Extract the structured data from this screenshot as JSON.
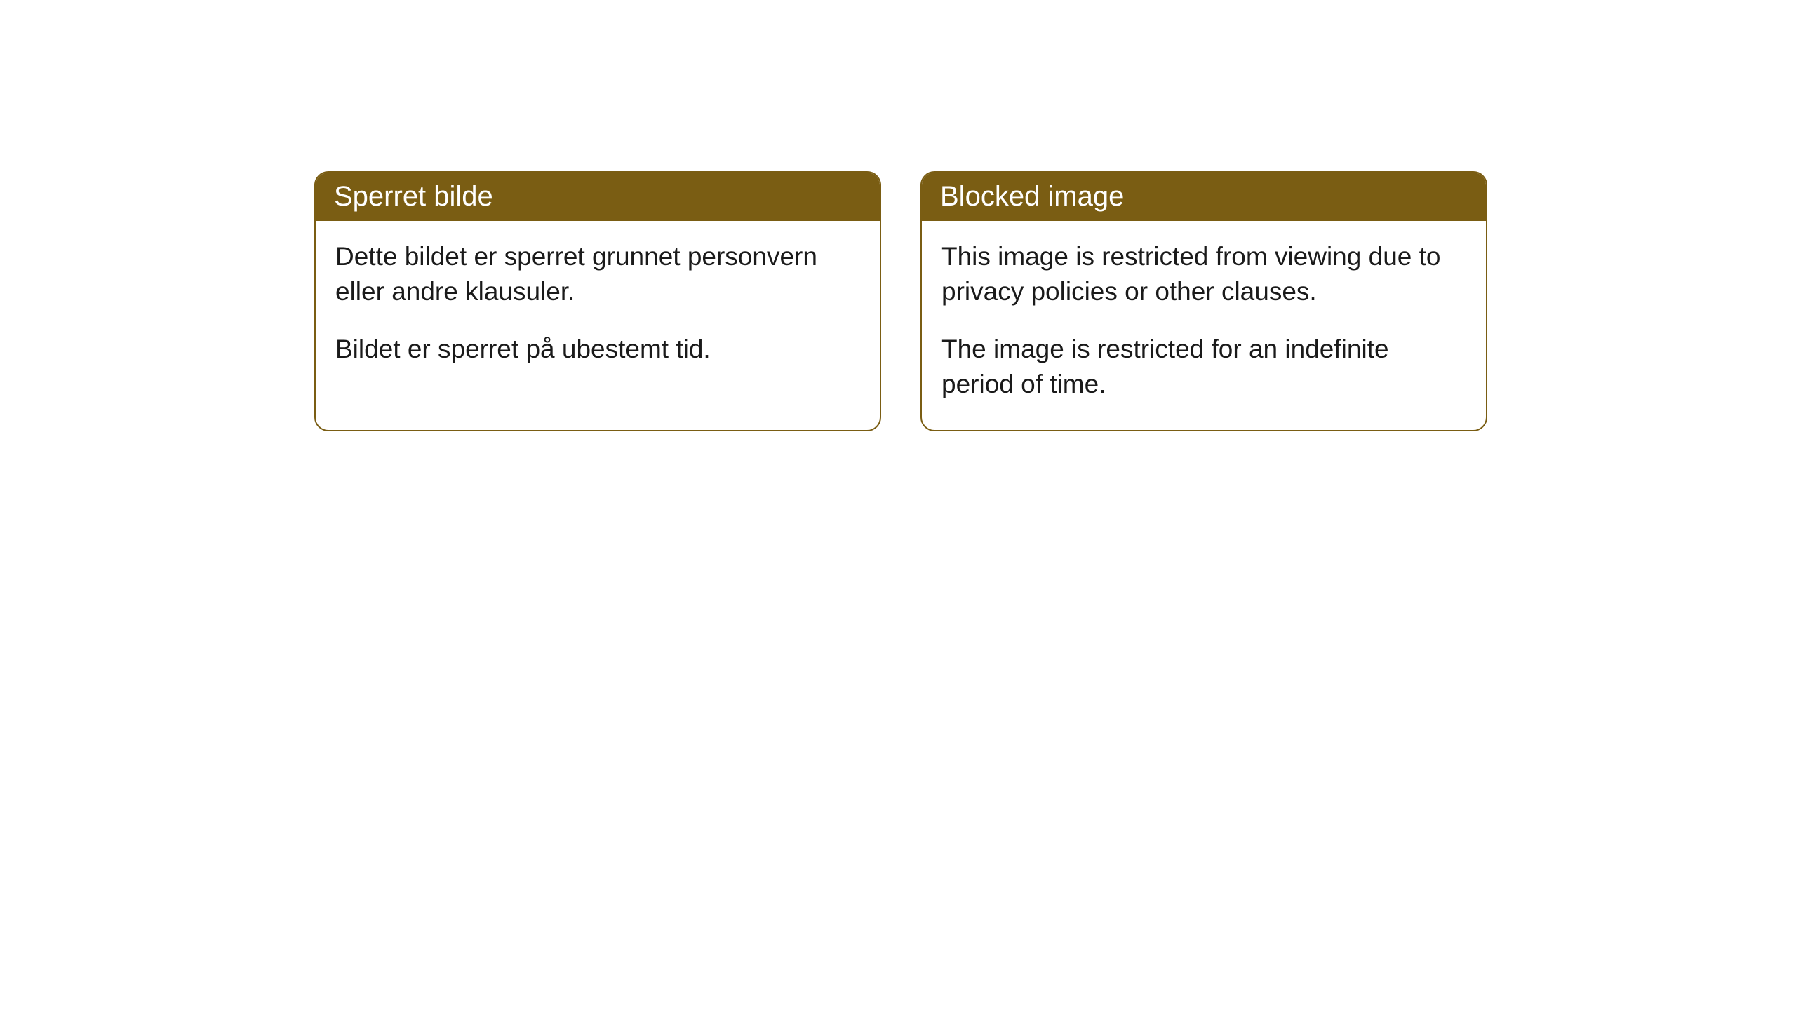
{
  "cards": [
    {
      "title": "Sperret bilde",
      "paragraph1": "Dette bildet er sperret grunnet personvern eller andre klausuler.",
      "paragraph2": "Bildet er sperret på ubestemt tid."
    },
    {
      "title": "Blocked image",
      "paragraph1": "This image is restricted from viewing due to privacy policies or other clauses.",
      "paragraph2": "The image is restricted for an indefinite period of time."
    }
  ],
  "styling": {
    "header_background": "#7a5d13",
    "header_text_color": "#ffffff",
    "border_color": "#7a5d13",
    "body_background": "#ffffff",
    "body_text_color": "#1a1a1a",
    "border_radius": 20,
    "header_fontsize": 40,
    "body_fontsize": 37
  }
}
